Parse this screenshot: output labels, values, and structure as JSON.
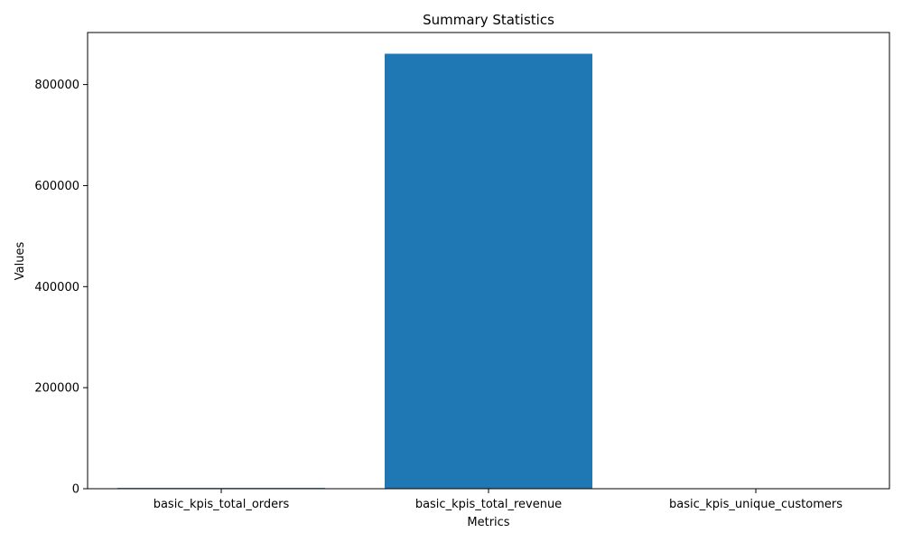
{
  "chart_data": {
    "type": "bar",
    "title": "Summary Statistics",
    "xlabel": "Metrics",
    "ylabel": "Values",
    "categories": [
      "basic_kpis_total_orders",
      "basic_kpis_total_revenue",
      "basic_kpis_unique_customers"
    ],
    "values": [
      1500,
      861000,
      500
    ],
    "ylim": [
      0,
      903000
    ],
    "yticks": [
      0,
      200000,
      400000,
      600000,
      800000
    ],
    "ytick_labels": [
      "0",
      "200000",
      "400000",
      "600000",
      "800000"
    ],
    "bar_color": "#1f77b4",
    "grid": false,
    "legend": false
  }
}
